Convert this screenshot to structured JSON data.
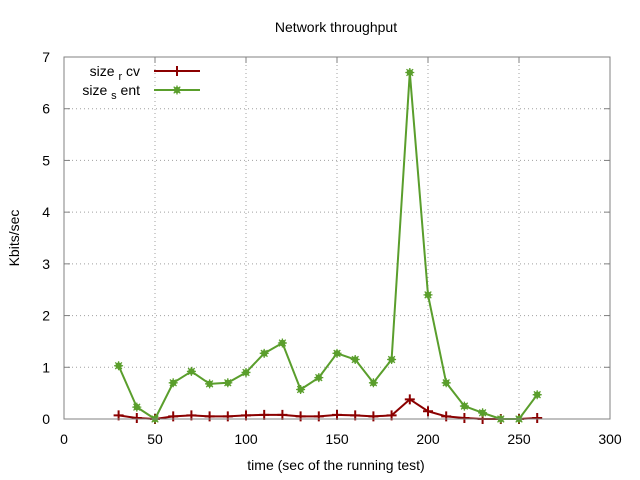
{
  "chart_data": {
    "type": "line",
    "title": "Network throughput",
    "xlabel": "time (sec of the running test)",
    "ylabel": "Kbits/sec",
    "xlim": [
      0,
      300
    ],
    "ylim": [
      0,
      7
    ],
    "x_ticks": [
      0,
      50,
      100,
      150,
      200,
      250,
      300
    ],
    "y_ticks": [
      0,
      1,
      2,
      3,
      4,
      5,
      6,
      7
    ],
    "grid": true,
    "legend_position": "top-left",
    "x": [
      30,
      40,
      50,
      60,
      70,
      80,
      90,
      100,
      110,
      120,
      130,
      140,
      150,
      160,
      170,
      180,
      190,
      200,
      210,
      220,
      230,
      240,
      250,
      260
    ],
    "series": [
      {
        "name_main": "size",
        "name_sub": "r",
        "name_rest": "cv",
        "color": "#8b0000",
        "marker": "plus",
        "values": [
          0.07,
          0.02,
          0.0,
          0.05,
          0.07,
          0.05,
          0.05,
          0.07,
          0.08,
          0.08,
          0.05,
          0.05,
          0.08,
          0.07,
          0.05,
          0.07,
          0.38,
          0.15,
          0.05,
          0.02,
          0.0,
          0.0,
          0.0,
          0.02
        ]
      },
      {
        "name_main": "size",
        "name_sub": "s",
        "name_rest": "ent",
        "color": "#5a9e2c",
        "marker": "filled-star",
        "values": [
          1.03,
          0.23,
          0.0,
          0.7,
          0.92,
          0.68,
          0.7,
          0.9,
          1.27,
          1.47,
          0.57,
          0.8,
          1.27,
          1.15,
          0.7,
          1.15,
          6.7,
          2.4,
          0.7,
          0.25,
          0.12,
          0.0,
          0.0,
          0.47
        ]
      }
    ]
  }
}
